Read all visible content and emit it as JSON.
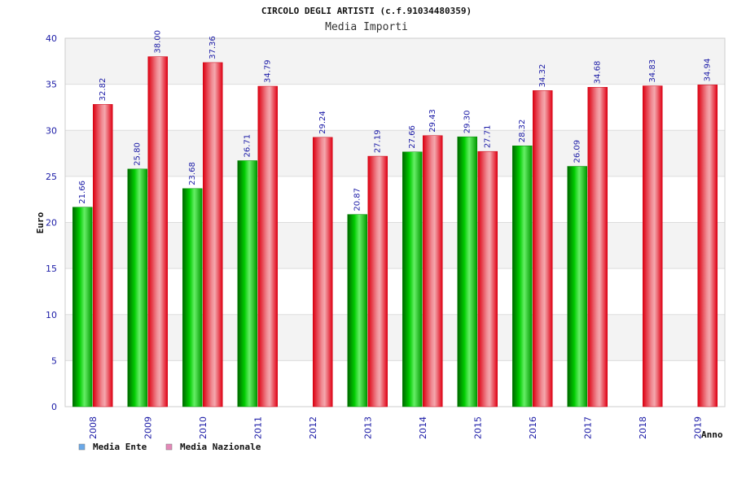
{
  "chart_data": {
    "type": "bar",
    "title": "CIRCOLO DEGLI ARTISTI (c.f.91034480359)",
    "subtitle": "Media Importi",
    "xlabel": "Anno",
    "ylabel": "Euro",
    "ylim": [
      0,
      40
    ],
    "yticks": [
      0,
      5,
      10,
      15,
      20,
      25,
      30,
      35,
      40
    ],
    "grid": true,
    "legend_position": "bottom-left",
    "categories": [
      "2008",
      "2009",
      "2010",
      "2011",
      "2012",
      "2013",
      "2014",
      "2015",
      "2016",
      "2017",
      "2018",
      "2019"
    ],
    "series": [
      {
        "name": "Media Ente",
        "color": "#00aa00",
        "legend_color": "#6aa8e8",
        "values": [
          21.66,
          25.8,
          23.68,
          26.71,
          null,
          20.87,
          27.66,
          29.3,
          28.32,
          26.09,
          null,
          null
        ],
        "labels": [
          "21.66",
          "25.80",
          "23.68",
          "26.71",
          "",
          "20.87",
          "27.66",
          "29.30",
          "28.32",
          "26.09",
          "",
          ""
        ]
      },
      {
        "name": "Media Nazionale",
        "color": "#ee1122",
        "legend_color": "#e488b8",
        "values": [
          32.82,
          38.0,
          37.36,
          34.79,
          29.24,
          27.19,
          29.43,
          27.71,
          34.32,
          34.68,
          34.83,
          34.94
        ],
        "labels": [
          "32.82",
          "38.00",
          "37.36",
          "34.79",
          "29.24",
          "27.19",
          "29.43",
          "27.71",
          "34.32",
          "34.68",
          "34.83",
          "34.94"
        ]
      }
    ]
  }
}
